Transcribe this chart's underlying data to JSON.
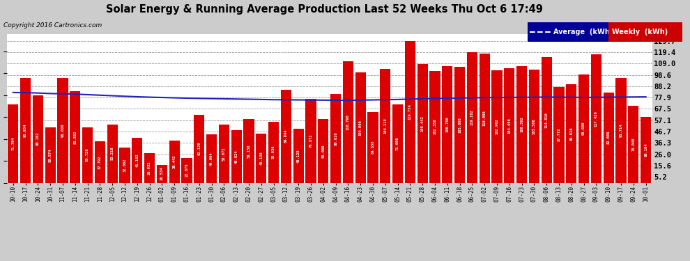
{
  "title": "Solar Energy & Running Average Production Last 52 Weeks Thu Oct 6 17:49",
  "copyright": "Copyright 2016 Cartronics.com",
  "yticks": [
    5.2,
    15.6,
    26.0,
    36.3,
    46.7,
    57.1,
    67.5,
    77.9,
    88.2,
    98.6,
    109.0,
    119.4,
    129.7
  ],
  "ymax": 136,
  "background_color": "#ffffff",
  "outer_bg": "#cccccc",
  "bar_color": "#dd0000",
  "avg_line_color": "#2222bb",
  "legend_avg_bg": "#000099",
  "legend_weekly_bg": "#cc0000",
  "categories": [
    "10-10",
    "10-17",
    "10-24",
    "10-31",
    "11-07",
    "11-14",
    "11-21",
    "11-28",
    "12-05",
    "12-12",
    "12-19",
    "12-26",
    "01-02",
    "01-09",
    "01-16",
    "01-23",
    "01-30",
    "02-06",
    "02-13",
    "02-20",
    "02-27",
    "03-05",
    "03-12",
    "03-19",
    "03-26",
    "04-02",
    "04-09",
    "04-16",
    "04-23",
    "04-30",
    "05-07",
    "05-14",
    "05-21",
    "05-28",
    "06-04",
    "06-11",
    "06-18",
    "06-25",
    "07-02",
    "07-09",
    "07-16",
    "07-23",
    "07-30",
    "08-06",
    "08-13",
    "08-20",
    "08-27",
    "09-03",
    "09-10",
    "09-17",
    "09-24",
    "10-01"
  ],
  "weekly_values": [
    71.794,
    95.954,
    80.102,
    50.574,
    96.0,
    83.552,
    50.728,
    37.792,
    53.21,
    32.062,
    41.102,
    26.932,
    16.534,
    38.442,
    22.878,
    62.12,
    44.064,
    53.072,
    48.024,
    58.15,
    45.136,
    55.936,
    84.944,
    49.128,
    76.872,
    58.008,
    80.81,
    110.79,
    100.906,
    64.858,
    104.118,
    71.606,
    129.734,
    108.442,
    102.358,
    106.766,
    105.668,
    119.102,
    118.098,
    102.902,
    104.456,
    106.592,
    103.506,
    114.816,
    87.772,
    89.926,
    99.036,
    117.426,
    82.606,
    95.714,
    70.04,
    60.164
  ],
  "avg_values": [
    82.5,
    82.3,
    82.0,
    81.5,
    81.3,
    81.0,
    80.5,
    80.0,
    79.5,
    79.0,
    78.6,
    78.2,
    77.9,
    77.6,
    77.3,
    77.1,
    76.9,
    76.7,
    76.5,
    76.3,
    76.1,
    75.9,
    75.8,
    75.7,
    75.6,
    75.5,
    75.4,
    75.3,
    75.5,
    75.7,
    75.9,
    76.1,
    76.4,
    76.7,
    77.0,
    77.2,
    77.4,
    77.6,
    77.8,
    77.9,
    78.0,
    78.1,
    78.2,
    78.3,
    78.2,
    78.1,
    78.0,
    78.1,
    78.2,
    78.3,
    78.4,
    78.5
  ]
}
